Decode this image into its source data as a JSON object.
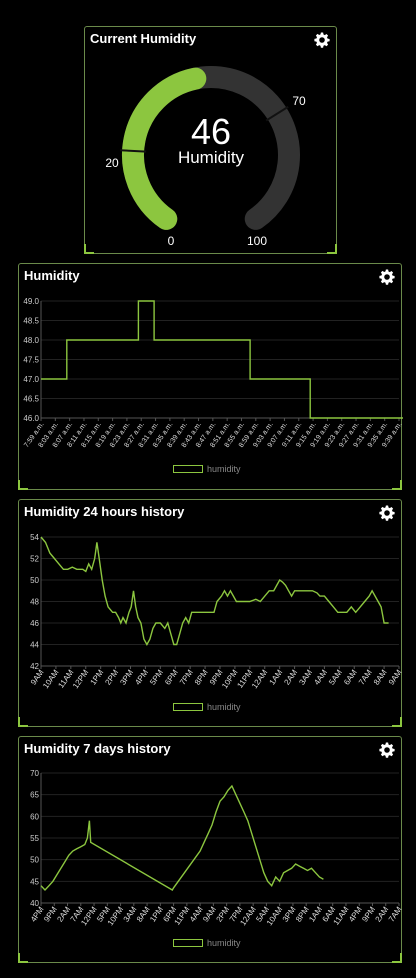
{
  "gauge": {
    "title": "Current Humidity",
    "value": 46,
    "value_text": "46",
    "label": "Humidity",
    "min": 0,
    "max": 100,
    "min_label": "0",
    "max_label": "100",
    "threshold_low": 20,
    "threshold_low_label": "20",
    "threshold_high": 70,
    "threshold_high_label": "70",
    "fill_color": "#8cc63f",
    "track_color": "#333333"
  },
  "charts": [
    {
      "title": "Humidity",
      "legend": "humidity",
      "chart_data": {
        "type": "line",
        "ylim": [
          46.0,
          49.0
        ],
        "yticks": [
          "46.0",
          "46.5",
          "47.0",
          "47.5",
          "48.0",
          "48.5",
          "49.0"
        ],
        "categories": [
          "7:59 a.m.",
          "8:03 a.m.",
          "8:07 a.m.",
          "8:11 a.m.",
          "8:15 a.m.",
          "8:19 a.m.",
          "8:23 a.m.",
          "8:27 a.m.",
          "8:31 a.m.",
          "8:35 a.m.",
          "8:39 a.m.",
          "8:43 a.m.",
          "8:47 a.m.",
          "8:51 a.m.",
          "8:55 a.m.",
          "8:59 a.m.",
          "9:03 a.m.",
          "9:07 a.m.",
          "9:11 a.m.",
          "9:15 a.m.",
          "9:19 a.m.",
          "9:23 a.m.",
          "9:27 a.m.",
          "9:31 a.m.",
          "9:35 a.m.",
          "9:39 a.m."
        ],
        "series": [
          {
            "name": "humidity",
            "points": [
              [
                0,
                47
              ],
              [
                1.8,
                47
              ],
              [
                1.8,
                48
              ],
              [
                6.8,
                48
              ],
              [
                6.8,
                49
              ],
              [
                7.9,
                49
              ],
              [
                7.9,
                48
              ],
              [
                14.6,
                48
              ],
              [
                14.6,
                47
              ],
              [
                18.8,
                47
              ],
              [
                18.8,
                46
              ],
              [
                25.8,
                46
              ]
            ]
          }
        ]
      }
    },
    {
      "title": "Humidity 24 hours history",
      "legend": "humidity",
      "chart_data": {
        "type": "line",
        "ylim": [
          42,
          54
        ],
        "yticks": [
          "42",
          "44",
          "46",
          "48",
          "50",
          "52",
          "54"
        ],
        "categories": [
          "9AM",
          "10AM",
          "11AM",
          "12PM",
          "1PM",
          "2PM",
          "3PM",
          "4PM",
          "5PM",
          "6PM",
          "7PM",
          "8PM",
          "9PM",
          "10PM",
          "11PM",
          "12AM",
          "1AM",
          "2AM",
          "3AM",
          "4AM",
          "5AM",
          "6AM",
          "7AM",
          "8AM",
          "9AM"
        ],
        "series": [
          {
            "name": "humidity",
            "points": [
              [
                0,
                54
              ],
              [
                0.3,
                53.5
              ],
              [
                0.6,
                52.5
              ],
              [
                0.9,
                52
              ],
              [
                1.2,
                51.5
              ],
              [
                1.5,
                51
              ],
              [
                1.8,
                51
              ],
              [
                2.1,
                51.2
              ],
              [
                2.4,
                51
              ],
              [
                2.8,
                51
              ],
              [
                3.0,
                50.8
              ],
              [
                3.2,
                51.5
              ],
              [
                3.4,
                51
              ],
              [
                3.6,
                52
              ],
              [
                3.75,
                53.5
              ],
              [
                3.9,
                52
              ],
              [
                4.1,
                50
              ],
              [
                4.3,
                48.5
              ],
              [
                4.5,
                47.5
              ],
              [
                4.8,
                47
              ],
              [
                5.0,
                47
              ],
              [
                5.2,
                46.5
              ],
              [
                5.35,
                46
              ],
              [
                5.5,
                46.5
              ],
              [
                5.7,
                46
              ],
              [
                5.9,
                47
              ],
              [
                6.05,
                47.5
              ],
              [
                6.2,
                49
              ],
              [
                6.35,
                47.5
              ],
              [
                6.5,
                46.5
              ],
              [
                6.7,
                46
              ],
              [
                6.9,
                44.5
              ],
              [
                7.1,
                44
              ],
              [
                7.3,
                44.5
              ],
              [
                7.5,
                45.5
              ],
              [
                7.7,
                46
              ],
              [
                8.0,
                46
              ],
              [
                8.3,
                45.5
              ],
              [
                8.5,
                46
              ],
              [
                8.7,
                45
              ],
              [
                8.9,
                44
              ],
              [
                9.1,
                44
              ],
              [
                9.3,
                45
              ],
              [
                9.5,
                46
              ],
              [
                9.7,
                46.5
              ],
              [
                9.9,
                46
              ],
              [
                10.1,
                47
              ],
              [
                11.0,
                47
              ],
              [
                11.6,
                47
              ],
              [
                11.8,
                48
              ],
              [
                12.1,
                48.5
              ],
              [
                12.3,
                49
              ],
              [
                12.5,
                48.5
              ],
              [
                12.7,
                49
              ],
              [
                12.9,
                48.5
              ],
              [
                13.1,
                48
              ],
              [
                13.5,
                48
              ],
              [
                14.0,
                48
              ],
              [
                14.4,
                48.2
              ],
              [
                14.7,
                48
              ],
              [
                15.0,
                48.5
              ],
              [
                15.3,
                49
              ],
              [
                15.6,
                49
              ],
              [
                15.8,
                49.5
              ],
              [
                16.0,
                50
              ],
              [
                16.2,
                49.8
              ],
              [
                16.4,
                49.5
              ],
              [
                16.6,
                49
              ],
              [
                16.8,
                48.5
              ],
              [
                17.0,
                49
              ],
              [
                17.4,
                49
              ],
              [
                17.8,
                49
              ],
              [
                18.2,
                49
              ],
              [
                18.5,
                48.8
              ],
              [
                18.7,
                48.5
              ],
              [
                19.0,
                48.5
              ],
              [
                19.3,
                48
              ],
              [
                19.6,
                47.5
              ],
              [
                19.9,
                47
              ],
              [
                20.2,
                47
              ],
              [
                20.5,
                47
              ],
              [
                20.8,
                47.5
              ],
              [
                21.1,
                47
              ],
              [
                21.4,
                47.5
              ],
              [
                21.7,
                48
              ],
              [
                22.0,
                48.5
              ],
              [
                22.2,
                49
              ],
              [
                22.4,
                48.5
              ],
              [
                22.6,
                48
              ],
              [
                22.8,
                47.5
              ],
              [
                23.0,
                46
              ],
              [
                23.3,
                46
              ]
            ]
          }
        ]
      }
    },
    {
      "title": "Humidity 7 days history",
      "legend": "humidity",
      "chart_data": {
        "type": "line",
        "ylim": [
          40,
          70
        ],
        "yticks": [
          "40",
          "45",
          "50",
          "55",
          "60",
          "65",
          "70"
        ],
        "categories": [
          "4PM",
          "9PM",
          "2AM",
          "7AM",
          "12PM",
          "5PM",
          "10PM",
          "3AM",
          "8AM",
          "1PM",
          "6PM",
          "11PM",
          "4AM",
          "9AM",
          "2PM",
          "7PM",
          "12AM",
          "5AM",
          "10AM",
          "3PM",
          "8PM",
          "1AM",
          "6AM",
          "11AM",
          "4PM",
          "9PM",
          "2AM",
          "7AM"
        ],
        "series": [
          {
            "name": "humidity",
            "points": [
              [
                0,
                44
              ],
              [
                0.3,
                43
              ],
              [
                0.6,
                44
              ],
              [
                0.9,
                45
              ],
              [
                1.2,
                46.5
              ],
              [
                1.5,
                48
              ],
              [
                1.8,
                49.5
              ],
              [
                2.1,
                51
              ],
              [
                2.4,
                52
              ],
              [
                2.7,
                52.5
              ],
              [
                3.0,
                53
              ],
              [
                3.3,
                53.5
              ],
              [
                3.5,
                55
              ],
              [
                3.65,
                59
              ],
              [
                3.75,
                54
              ],
              [
                9.9,
                43
              ],
              [
                10.0,
                43.5
              ],
              [
                12.0,
                52
              ],
              [
                12.3,
                54
              ],
              [
                12.6,
                56
              ],
              [
                12.9,
                58
              ],
              [
                13.2,
                61
              ],
              [
                13.5,
                63.5
              ],
              [
                13.8,
                64.5
              ],
              [
                14.1,
                66
              ],
              [
                14.4,
                67
              ],
              [
                14.7,
                65
              ],
              [
                15.0,
                63
              ],
              [
                15.3,
                61
              ],
              [
                15.6,
                59
              ],
              [
                15.9,
                56
              ],
              [
                16.2,
                53
              ],
              [
                16.5,
                50
              ],
              [
                16.8,
                47
              ],
              [
                17.1,
                45
              ],
              [
                17.4,
                44
              ],
              [
                17.7,
                46
              ],
              [
                18.0,
                45
              ],
              [
                18.3,
                47
              ],
              [
                18.6,
                47.5
              ],
              [
                18.9,
                48
              ],
              [
                19.2,
                49
              ],
              [
                19.5,
                48.5
              ],
              [
                19.8,
                48
              ],
              [
                20.1,
                47.5
              ],
              [
                20.4,
                48
              ],
              [
                20.7,
                47
              ],
              [
                21.0,
                46
              ],
              [
                21.3,
                45.5
              ]
            ]
          }
        ]
      }
    }
  ]
}
